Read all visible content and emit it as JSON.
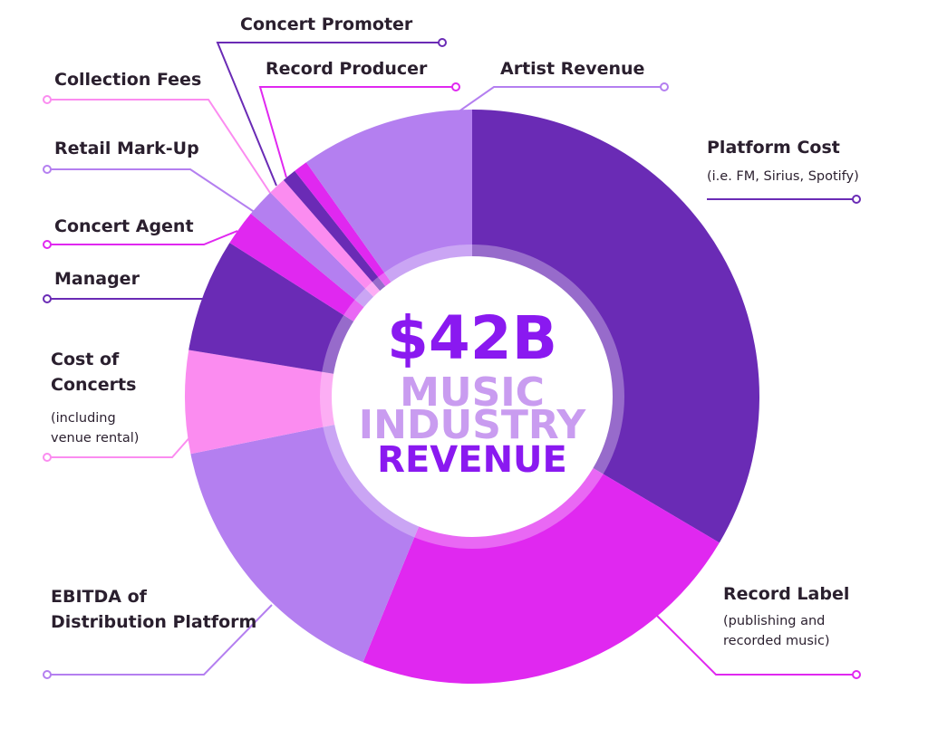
{
  "chart_data": {
    "type": "pie",
    "variant": "donut",
    "center_text": {
      "amount": "$42B",
      "line1": "MUSIC",
      "line2": "INDUSTRY",
      "line3": "REVENUE"
    },
    "unit": "percent of revenue (estimated from slice angles)",
    "slices": [
      {
        "label": "Platform Cost",
        "note": "(i.e. FM, Sirius, Spotify)",
        "value": 33.5,
        "color": "#6a2bb5"
      },
      {
        "label": "Record Label",
        "note": "(publishing and recorded music)",
        "value": 22.7,
        "color": "#e028f0"
      },
      {
        "label": "EBITDA of Distribution Platform",
        "note": "",
        "value": 15.6,
        "color": "#b47ff0"
      },
      {
        "label": "Cost of Concerts",
        "note": "(including venue rental)",
        "value": 5.8,
        "color": "#fb8cf0"
      },
      {
        "label": "Manager",
        "note": "",
        "value": 6.4,
        "color": "#6a2bb5"
      },
      {
        "label": "Concert Agent",
        "note": "",
        "value": 2.0,
        "color": "#e028f0"
      },
      {
        "label": "Retail Mark-Up",
        "note": "",
        "value": 1.6,
        "color": "#b47ff0"
      },
      {
        "label": "Collection Fees",
        "note": "",
        "value": 1.0,
        "color": "#fb8cf0"
      },
      {
        "label": "Concert Promoter",
        "note": "",
        "value": 0.8,
        "color": "#6a2bb5"
      },
      {
        "label": "Record Producer",
        "note": "",
        "value": 0.8,
        "color": "#e028f0"
      },
      {
        "label": "Artist Revenue",
        "note": "",
        "value": 9.8,
        "color": "#b47ff0"
      }
    ]
  }
}
